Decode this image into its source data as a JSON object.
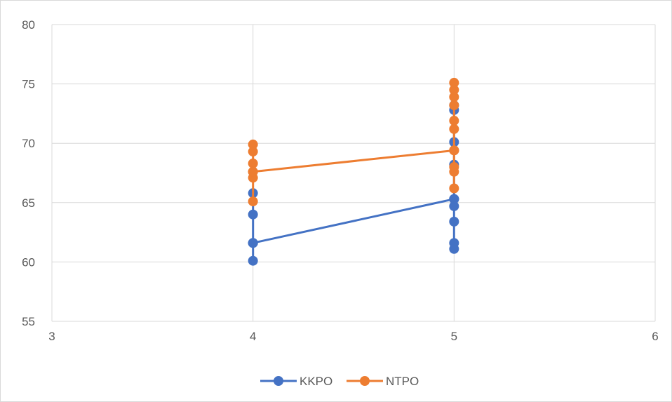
{
  "chart_data": {
    "type": "scatter",
    "title": "",
    "xlabel": "",
    "ylabel": "",
    "xlim": [
      3,
      6
    ],
    "ylim": [
      55,
      80
    ],
    "xticks": [
      3,
      4,
      5,
      6
    ],
    "yticks": [
      55,
      60,
      65,
      70,
      75,
      80
    ],
    "grid": true,
    "legend_position": "bottom",
    "series": [
      {
        "name": "KKPO",
        "color": "#4472C4",
        "points": [
          [
            4,
            61.6
          ],
          [
            4,
            60.1
          ],
          [
            4,
            61.6
          ],
          [
            4,
            64.0
          ],
          [
            4,
            65.8
          ],
          [
            4,
            61.6
          ],
          [
            5,
            65.3
          ],
          [
            5,
            61.1
          ],
          [
            5,
            61.6
          ],
          [
            5,
            63.4
          ],
          [
            5,
            64.7
          ],
          [
            5,
            65.3
          ],
          [
            5,
            68.2
          ],
          [
            5,
            70.1
          ],
          [
            5,
            72.8
          ],
          [
            5,
            73.2
          ],
          [
            5,
            65.3
          ]
        ]
      },
      {
        "name": "NTPO",
        "color": "#ED7D31",
        "points": [
          [
            4,
            67.6
          ],
          [
            4,
            65.1
          ],
          [
            4,
            67.1
          ],
          [
            4,
            67.6
          ],
          [
            4,
            68.3
          ],
          [
            4,
            69.3
          ],
          [
            4,
            69.9
          ],
          [
            4,
            67.6
          ],
          [
            5,
            69.4
          ],
          [
            5,
            66.2
          ],
          [
            5,
            67.6
          ],
          [
            5,
            68.0
          ],
          [
            5,
            69.4
          ],
          [
            5,
            71.2
          ],
          [
            5,
            71.9
          ],
          [
            5,
            73.2
          ],
          [
            5,
            73.9
          ],
          [
            5,
            74.5
          ],
          [
            5,
            75.1
          ],
          [
            5,
            69.4
          ]
        ]
      }
    ]
  }
}
